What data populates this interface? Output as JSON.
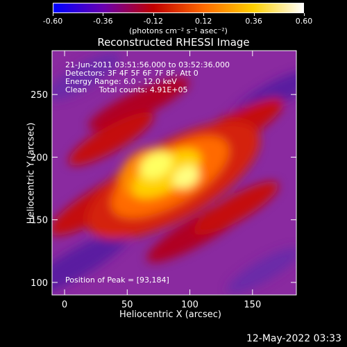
{
  "colorbar": {
    "ticks": [
      "-0.60",
      "-0.36",
      "-0.12",
      "0.12",
      "0.36",
      "0.60"
    ],
    "unit_label": "(photons cm⁻² s⁻¹ asec⁻²)",
    "colors": [
      "#0000ff",
      "#6a00b0",
      "#c00000",
      "#ff6a00",
      "#ffd000",
      "#ffffff"
    ]
  },
  "chart_data": {
    "type": "heatmap",
    "title": "Reconstructed RHESSI Image",
    "xlabel": "Heliocentric X (arcsec)",
    "ylabel": "Heliocentric Y (arcsec)",
    "xlim": [
      -10,
      185
    ],
    "ylim": [
      90,
      285
    ],
    "xticks": [
      0,
      50,
      100,
      150
    ],
    "yticks": [
      100,
      150,
      200,
      250
    ],
    "value_range": [
      -0.6,
      0.6
    ],
    "peak": [
      93,
      184
    ],
    "info_lines": [
      "21-Jun-2011 03:51:56.000 to 03:52:36.000",
      "Detectors: 3F 4F 5F 6F 7F 8F, Att 0",
      "Energy Range: 6.0 - 12.0 keV",
      "Clean     Total counts: 4.91E+05"
    ],
    "peak_label": "Position of Peak = [93,184]"
  },
  "footer": {
    "timestamp": "12-May-2022 03:33"
  }
}
